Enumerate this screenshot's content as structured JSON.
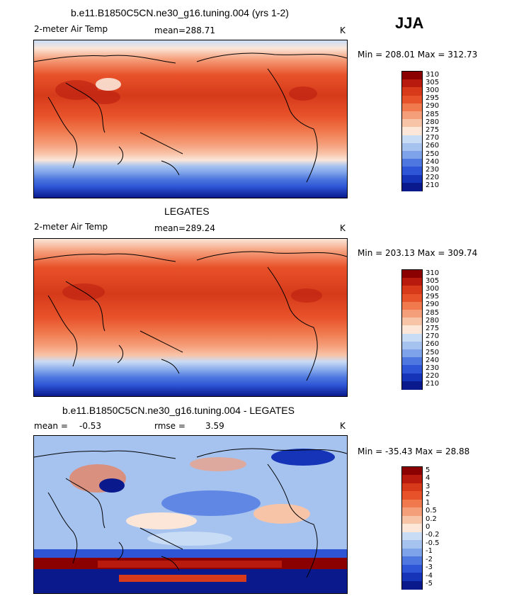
{
  "season": "JJA",
  "chart_data": [
    {
      "type": "heatmap",
      "title": "b.e11.B1850C5CN.ne30_g16.tuning.004 (yrs 1-2)",
      "variable": "2-meter Air Temp",
      "mean_label": "mean=",
      "mean_value": "288.71",
      "units": "K",
      "minmax": "Min = 208.01 Max = 312.73",
      "min": 208.01,
      "max": 312.73,
      "colorbar_levels": [
        "310",
        "305",
        "300",
        "295",
        "290",
        "285",
        "280",
        "275",
        "270",
        "260",
        "250",
        "240",
        "230",
        "220",
        "210"
      ],
      "colorbar_colors": [
        "#8b0000",
        "#b81a0e",
        "#d63a1a",
        "#e8522a",
        "#f07a4e",
        "#f59e7a",
        "#f8c4a8",
        "#fbe6d8",
        "#c9dcf5",
        "#a6c3f0",
        "#7fa3ea",
        "#4e78e0",
        "#2d55d6",
        "#1634b8",
        "#0a1a8c"
      ]
    },
    {
      "type": "heatmap",
      "title": "LEGATES",
      "variable": "2-meter Air Temp",
      "mean_label": "mean=",
      "mean_value": "289.24",
      "units": "K",
      "minmax": "Min = 203.13 Max = 309.74",
      "min": 203.13,
      "max": 309.74,
      "colorbar_levels": [
        "310",
        "305",
        "300",
        "295",
        "290",
        "285",
        "280",
        "275",
        "270",
        "260",
        "250",
        "240",
        "230",
        "220",
        "210"
      ],
      "colorbar_colors": [
        "#8b0000",
        "#b81a0e",
        "#d63a1a",
        "#e8522a",
        "#f07a4e",
        "#f59e7a",
        "#f8c4a8",
        "#fbe6d8",
        "#c9dcf5",
        "#a6c3f0",
        "#7fa3ea",
        "#4e78e0",
        "#2d55d6",
        "#1634b8",
        "#0a1a8c"
      ]
    },
    {
      "type": "heatmap",
      "title": "b.e11.B1850C5CN.ne30_g16.tuning.004 - LEGATES",
      "mean_label": "mean =",
      "mean_value": "-0.53",
      "rmse_label": "rmse =",
      "rmse_value": "3.59",
      "units": "K",
      "minmax": "Min = -35.43 Max = 28.88",
      "min": -35.43,
      "max": 28.88,
      "colorbar_levels": [
        "5",
        "4",
        "3",
        "2",
        "1",
        "0.5",
        "0.2",
        "0",
        "-0.2",
        "-0.5",
        "-1",
        "-2",
        "-3",
        "-4",
        "-5"
      ],
      "colorbar_colors": [
        "#8b0000",
        "#b81a0e",
        "#d63a1a",
        "#e8522a",
        "#f07a4e",
        "#f59e7a",
        "#f8c4a8",
        "#fbe6d8",
        "#c9dcf5",
        "#a6c3f0",
        "#7fa3ea",
        "#4e78e0",
        "#2d55d6",
        "#1634b8",
        "#0a1a8c"
      ]
    }
  ]
}
